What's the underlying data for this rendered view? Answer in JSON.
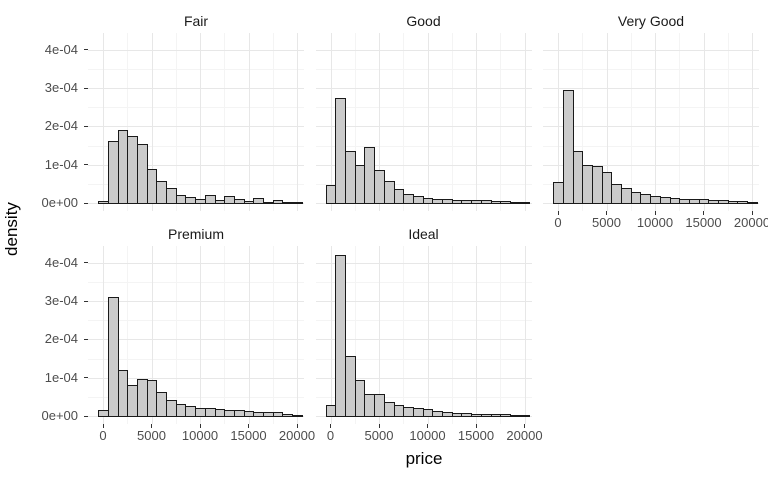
{
  "figure": {
    "ylabel": "density",
    "xlabel": "price",
    "y_tick_labels": [
      "0e+00",
      "1e-04",
      "2e-04",
      "3e-04",
      "4e-04"
    ],
    "x_tick_labels": [
      "0",
      "5000",
      "10000",
      "15000",
      "20000"
    ],
    "colors": {
      "background": "#ffffff",
      "bar_fill": "#cbcbcb",
      "bar_border": "#1a1a1a",
      "grid_major": "#e7e7e7",
      "grid_minor": "#f4f4f4",
      "tick_mark": "#333333",
      "tick_text": "#4d4d4d",
      "strip_text": "#1a1a1a",
      "axis_title_text": "#000000"
    }
  },
  "chart_data": {
    "type": "bar",
    "subtype": "faceted-histogram",
    "title": "",
    "xlabel": "price",
    "ylabel": "density",
    "x_ticks": [
      0,
      5000,
      10000,
      15000,
      20000
    ],
    "y_ticks_e04": [
      0,
      1,
      2,
      3,
      4
    ],
    "xlim": [
      -1550,
      21550
    ],
    "ylim_e04": [
      0,
      4.43
    ],
    "grid": "on",
    "legend": "none",
    "bin_width": 1000,
    "bin_centers": [
      0,
      1000,
      2000,
      3000,
      4000,
      5000,
      6000,
      7000,
      8000,
      9000,
      10000,
      11000,
      12000,
      13000,
      14000,
      15000,
      16000,
      17000,
      18000,
      19000,
      20000
    ],
    "density_units": "1e-04",
    "facets": [
      {
        "label": "Fair",
        "row": 0,
        "col": 0,
        "show_x_axis": false,
        "densities_e04": [
          0.06,
          1.63,
          1.9,
          1.76,
          1.55,
          0.9,
          0.57,
          0.39,
          0.22,
          0.15,
          0.1,
          0.2,
          0.09,
          0.17,
          0.1,
          0.05,
          0.12,
          0.03,
          0.08,
          0.03,
          0.01
        ]
      },
      {
        "label": "Good",
        "row": 0,
        "col": 1,
        "show_x_axis": false,
        "densities_e04": [
          0.48,
          2.74,
          1.35,
          1.0,
          1.46,
          0.85,
          0.57,
          0.37,
          0.24,
          0.17,
          0.13,
          0.1,
          0.1,
          0.09,
          0.09,
          0.07,
          0.07,
          0.05,
          0.04,
          0.02,
          0.01
        ]
      },
      {
        "label": "Very Good",
        "row": 0,
        "col": 2,
        "show_x_axis": true,
        "densities_e04": [
          0.54,
          2.94,
          1.37,
          1.0,
          0.97,
          0.8,
          0.5,
          0.39,
          0.28,
          0.23,
          0.19,
          0.16,
          0.13,
          0.11,
          0.1,
          0.1,
          0.07,
          0.07,
          0.06,
          0.05,
          0.02
        ]
      },
      {
        "label": "Premium",
        "row": 1,
        "col": 0,
        "show_x_axis": true,
        "densities_e04": [
          0.15,
          3.1,
          1.2,
          0.8,
          0.96,
          0.93,
          0.63,
          0.43,
          0.32,
          0.27,
          0.22,
          0.21,
          0.17,
          0.16,
          0.16,
          0.13,
          0.1,
          0.11,
          0.1,
          0.04,
          0.02
        ]
      },
      {
        "label": "Ideal",
        "row": 1,
        "col": 1,
        "show_x_axis": true,
        "densities_e04": [
          0.3,
          4.2,
          1.56,
          0.94,
          0.57,
          0.58,
          0.37,
          0.3,
          0.23,
          0.2,
          0.17,
          0.13,
          0.11,
          0.09,
          0.08,
          0.06,
          0.05,
          0.05,
          0.04,
          0.02,
          0.01
        ]
      }
    ]
  }
}
